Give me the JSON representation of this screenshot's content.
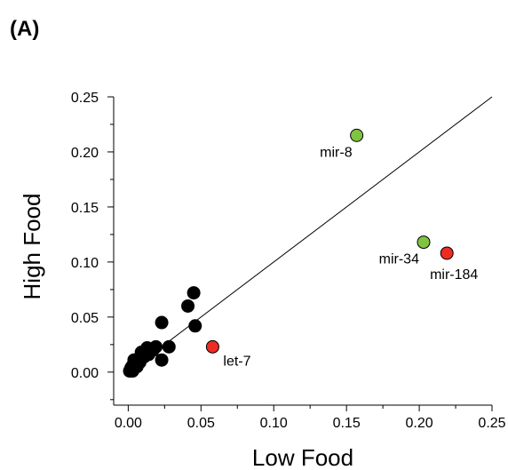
{
  "panel_label": "(A)",
  "chart_data": {
    "type": "scatter",
    "xlabel": "Low Food",
    "ylabel": "High Food",
    "xlim": [
      -0.01,
      0.25
    ],
    "ylim": [
      -0.03,
      0.25
    ],
    "xticks": [
      0.0,
      0.05,
      0.1,
      0.15,
      0.2,
      0.25
    ],
    "xtick_labels": [
      "0.00",
      "0.05",
      "0.10",
      "0.15",
      "0.20",
      "0.25"
    ],
    "yticks": [
      0.0,
      0.05,
      0.1,
      0.15,
      0.2,
      0.25
    ],
    "ytick_labels": [
      "0.00",
      "0.05",
      "0.10",
      "0.15",
      "0.20",
      "0.25"
    ],
    "minor_ticks": true,
    "grid": false,
    "reference_line": {
      "x1": 0.0,
      "y1": 0.0,
      "x2": 0.25,
      "y2": 0.25
    },
    "colors": {
      "default": "#000000",
      "green": "#80c342",
      "red": "#ee2b24"
    },
    "points": [
      {
        "x": 0.001,
        "y": 0.001
      },
      {
        "x": 0.002,
        "y": 0.002
      },
      {
        "x": 0.002,
        "y": 0.004
      },
      {
        "x": 0.003,
        "y": 0.001
      },
      {
        "x": 0.003,
        "y": 0.006
      },
      {
        "x": 0.004,
        "y": 0.003
      },
      {
        "x": 0.004,
        "y": 0.011
      },
      {
        "x": 0.005,
        "y": 0.008
      },
      {
        "x": 0.006,
        "y": 0.005
      },
      {
        "x": 0.007,
        "y": 0.012
      },
      {
        "x": 0.008,
        "y": 0.009
      },
      {
        "x": 0.009,
        "y": 0.018
      },
      {
        "x": 0.011,
        "y": 0.014
      },
      {
        "x": 0.013,
        "y": 0.022
      },
      {
        "x": 0.014,
        "y": 0.016
      },
      {
        "x": 0.017,
        "y": 0.02
      },
      {
        "x": 0.019,
        "y": 0.023
      },
      {
        "x": 0.023,
        "y": 0.011
      },
      {
        "x": 0.023,
        "y": 0.045
      },
      {
        "x": 0.028,
        "y": 0.023
      },
      {
        "x": 0.041,
        "y": 0.06
      },
      {
        "x": 0.045,
        "y": 0.072
      },
      {
        "x": 0.046,
        "y": 0.042
      },
      {
        "x": 0.058,
        "y": 0.023,
        "color": "red",
        "label": "let-7",
        "label_pos": "below-right"
      },
      {
        "x": 0.157,
        "y": 0.215,
        "color": "green",
        "label": "mir-8",
        "label_pos": "below-left"
      },
      {
        "x": 0.203,
        "y": 0.118,
        "color": "green",
        "label": "mir-34",
        "label_pos": "below-left"
      },
      {
        "x": 0.219,
        "y": 0.108,
        "color": "red",
        "label": "mir-184",
        "label_pos": "below"
      }
    ]
  }
}
